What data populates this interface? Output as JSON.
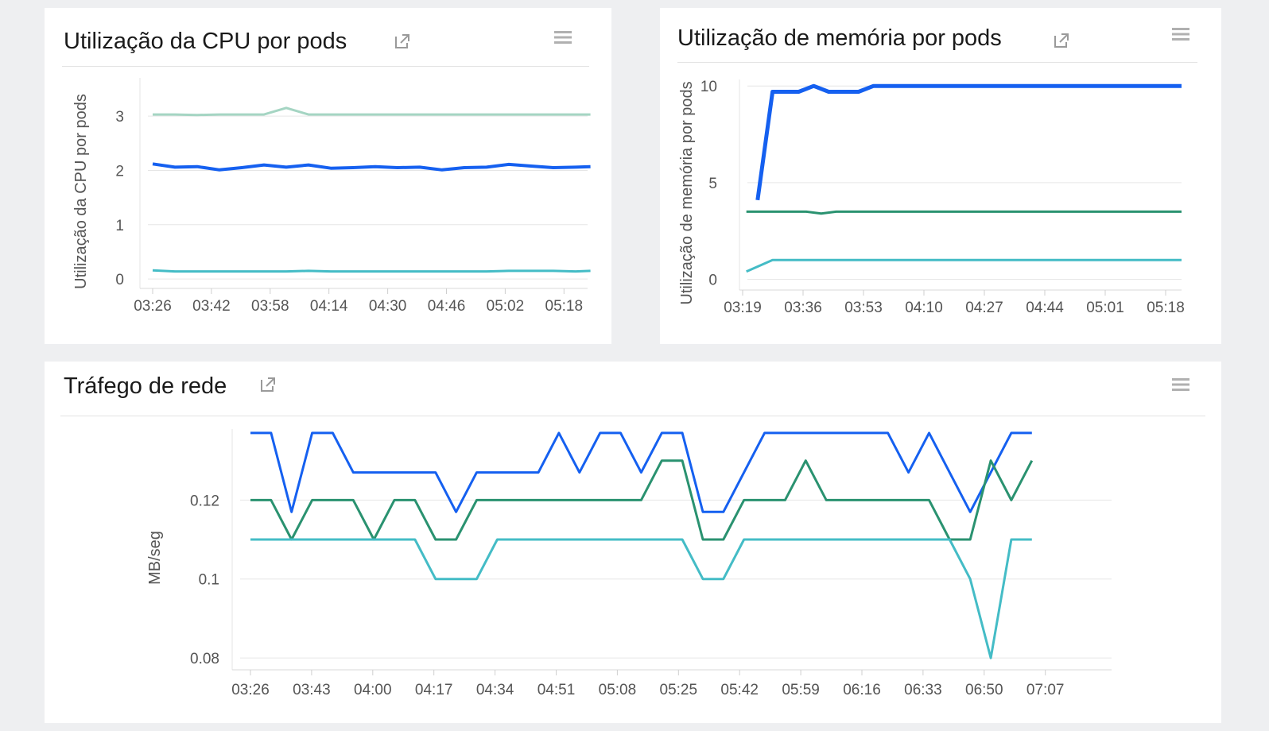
{
  "colors": {
    "blue": "#1560f0",
    "green": "#2a9270",
    "teal": "#44bcc6",
    "light_green": "#a5d5c3",
    "grid": "#e6e6e6",
    "axis_text": "#555555"
  },
  "icons": {
    "external": "external-link-icon",
    "menu": "hamburger-menu-icon"
  },
  "panels": {
    "cpu": {
      "title": "Utilização da CPU por pods"
    },
    "mem": {
      "title": "Utilização de memória por pods"
    },
    "net": {
      "title": "Tráfego de rede"
    }
  },
  "chart_data": [
    {
      "type": "line",
      "title": "Utilização da CPU por pods",
      "xlabel": "",
      "ylabel": "Utilização da CPU por pods",
      "x_tick_labels": [
        "03:26",
        "03:42",
        "03:58",
        "04:14",
        "04:30",
        "04:46",
        "05:02",
        "05:18"
      ],
      "y_ticks": [
        0,
        1,
        2,
        3
      ],
      "y_tick_labels": [
        "0",
        "1",
        "2",
        "3"
      ],
      "ylim": [
        -0.1,
        3.85
      ],
      "x_range_minutes": [
        0,
        118
      ],
      "grid": true,
      "legend": "none",
      "series": [
        {
          "color": "#a5d5c3",
          "width": 3,
          "x": [
            0,
            6,
            12,
            18,
            24,
            30,
            36,
            42,
            48,
            54,
            60,
            66,
            72,
            78,
            84,
            90,
            96,
            102,
            108,
            114,
            118
          ],
          "values": [
            3.03,
            3.03,
            3.02,
            3.03,
            3.03,
            3.03,
            3.15,
            3.03,
            3.03,
            3.03,
            3.03,
            3.03,
            3.03,
            3.03,
            3.03,
            3.03,
            3.03,
            3.03,
            3.03,
            3.03,
            3.03
          ]
        },
        {
          "color": "#1560f0",
          "width": 4,
          "x": [
            0,
            6,
            12,
            18,
            24,
            30,
            36,
            42,
            48,
            54,
            60,
            66,
            72,
            78,
            84,
            90,
            96,
            102,
            108,
            114,
            118
          ],
          "values": [
            2.12,
            2.06,
            2.07,
            2.01,
            2.05,
            2.1,
            2.06,
            2.1,
            2.04,
            2.05,
            2.07,
            2.05,
            2.06,
            2.01,
            2.05,
            2.06,
            2.11,
            2.08,
            2.05,
            2.06,
            2.07
          ]
        },
        {
          "color": "#44bcc6",
          "width": 3,
          "x": [
            0,
            6,
            12,
            18,
            24,
            30,
            36,
            42,
            48,
            54,
            60,
            66,
            72,
            78,
            84,
            90,
            96,
            102,
            108,
            114,
            118
          ],
          "values": [
            0.16,
            0.14,
            0.14,
            0.14,
            0.14,
            0.14,
            0.14,
            0.15,
            0.14,
            0.14,
            0.14,
            0.14,
            0.14,
            0.14,
            0.14,
            0.14,
            0.15,
            0.15,
            0.15,
            0.14,
            0.15
          ]
        }
      ]
    },
    {
      "type": "line",
      "title": "Utilização de memória por pods",
      "xlabel": "",
      "ylabel": "Utilização de memória por pods",
      "x_tick_labels": [
        "03:19",
        "03:36",
        "03:53",
        "04:10",
        "04:27",
        "04:44",
        "05:01",
        "05:18"
      ],
      "y_ticks": [
        0,
        5,
        10
      ],
      "y_tick_labels": [
        "0",
        "5",
        "10"
      ],
      "ylim": [
        -0.35,
        10.75
      ],
      "x_range_minutes": [
        0,
        122
      ],
      "grid": true,
      "legend": "none",
      "series": [
        {
          "color": "#1560f0",
          "width": 5,
          "x": [
            4,
            8,
            15,
            19,
            23,
            27,
            31,
            35,
            39,
            43,
            47,
            51,
            55,
            59,
            63,
            67,
            71,
            75,
            79,
            83,
            87,
            91,
            95,
            99,
            103,
            107,
            111,
            115,
            119,
            122
          ],
          "values": [
            4.1,
            9.7,
            9.7,
            10.0,
            9.7,
            9.7,
            9.7,
            10.0,
            10.0,
            10.0,
            10.0,
            10.0,
            10.0,
            10.0,
            10.0,
            10.0,
            10.0,
            10.0,
            10.0,
            10.0,
            10.0,
            10.0,
            10.0,
            10.0,
            10.0,
            10.0,
            10.0,
            10.0,
            10.0,
            9.7
          ]
        },
        {
          "color": "#2a9270",
          "width": 3,
          "x": [
            1,
            5,
            9,
            13,
            17,
            21,
            25,
            29,
            33,
            37,
            41,
            45,
            49,
            53,
            57,
            61,
            65,
            69,
            73,
            77,
            81,
            85,
            89,
            93,
            97,
            101,
            105,
            109,
            113,
            117,
            122
          ],
          "values": [
            3.5,
            3.5,
            3.5,
            3.5,
            3.5,
            3.4,
            3.5,
            3.5,
            3.5,
            3.5,
            3.5,
            3.5,
            3.5,
            3.5,
            3.5,
            3.5,
            3.5,
            3.5,
            3.5,
            3.5,
            3.5,
            3.5,
            3.5,
            3.5,
            3.5,
            3.5,
            3.5,
            3.5,
            3.5,
            3.5,
            3.5
          ]
        },
        {
          "color": "#44bcc6",
          "width": 3,
          "x": [
            1,
            8,
            12,
            16,
            20,
            24,
            28,
            32,
            36,
            40,
            44,
            48,
            52,
            56,
            60,
            64,
            68,
            72,
            76,
            80,
            84,
            88,
            92,
            96,
            100,
            104,
            108,
            112,
            116,
            122
          ],
          "values": [
            0.4,
            1.0,
            1.0,
            1.0,
            1.0,
            1.0,
            1.0,
            1.0,
            1.0,
            1.0,
            1.0,
            1.0,
            1.0,
            1.0,
            1.0,
            1.0,
            1.0,
            1.0,
            1.0,
            1.0,
            1.0,
            1.0,
            1.0,
            1.0,
            1.0,
            1.0,
            1.0,
            1.0,
            1.0,
            1.0
          ]
        }
      ]
    },
    {
      "type": "line",
      "title": "Tráfego de rede",
      "xlabel": "",
      "ylabel": "MB/seg",
      "x_tick_labels": [
        "03:26",
        "03:43",
        "04:00",
        "04:17",
        "04:34",
        "04:51",
        "05:08",
        "05:25",
        "05:42",
        "05:59",
        "06:16",
        "06:33",
        "06:50",
        "07:07"
      ],
      "y_ticks": [
        0.08,
        0.1,
        0.12
      ],
      "y_tick_labels": [
        "0.08",
        "0.1",
        "0.12"
      ],
      "ylim": [
        0.078,
        0.14
      ],
      "x_range_minutes": [
        0,
        245
      ],
      "grid": true,
      "legend": "none",
      "series": [
        {
          "color": "#1560f0",
          "width": 3,
          "x": [
            0,
            6.2,
            12.4,
            18.6,
            24.8,
            31,
            37.2,
            43.4,
            49.6,
            55.8,
            62,
            68.2,
            74.4,
            80.6,
            86.8,
            93,
            99.2,
            105.4,
            111.6,
            117.8,
            124,
            130.2,
            136.4,
            142.6,
            148.8,
            155,
            161.2,
            167.4,
            173.6,
            179.8,
            186,
            192.2,
            198.4,
            204.6,
            210.8,
            217,
            223.2,
            229.4,
            235.6
          ],
          "values": [
            0.137,
            0.137,
            0.117,
            0.137,
            0.137,
            0.127,
            0.127,
            0.127,
            0.127,
            0.127,
            0.117,
            0.127,
            0.127,
            0.127,
            0.127,
            0.137,
            0.127,
            0.137,
            0.137,
            0.127,
            0.137,
            0.137,
            0.117,
            0.117,
            0.127,
            0.137,
            0.137,
            0.137,
            0.137,
            0.137,
            0.137,
            0.137,
            0.127,
            0.137,
            0.127,
            0.117,
            0.127,
            0.137,
            0.137
          ]
        },
        {
          "color": "#2a9270",
          "width": 3,
          "x": [
            0,
            6.2,
            12.4,
            18.6,
            24.8,
            31,
            37.2,
            43.4,
            49.6,
            55.8,
            62,
            68.2,
            74.4,
            80.6,
            86.8,
            93,
            99.2,
            105.4,
            111.6,
            117.8,
            124,
            130.2,
            136.4,
            142.6,
            148.8,
            155,
            161.2,
            167.4,
            173.6,
            179.8,
            186,
            192.2,
            198.4,
            204.6,
            210.8,
            217,
            223.2,
            229.4,
            235.6
          ],
          "values": [
            0.12,
            0.12,
            0.11,
            0.12,
            0.12,
            0.12,
            0.11,
            0.12,
            0.12,
            0.11,
            0.11,
            0.12,
            0.12,
            0.12,
            0.12,
            0.12,
            0.12,
            0.12,
            0.12,
            0.12,
            0.13,
            0.13,
            0.11,
            0.11,
            0.12,
            0.12,
            0.12,
            0.13,
            0.12,
            0.12,
            0.12,
            0.12,
            0.12,
            0.12,
            0.11,
            0.11,
            0.13,
            0.12,
            0.13
          ]
        },
        {
          "color": "#44bcc6",
          "width": 3,
          "x": [
            0,
            6.2,
            12.4,
            18.6,
            24.8,
            31,
            37.2,
            43.4,
            49.6,
            55.8,
            62,
            68.2,
            74.4,
            80.6,
            86.8,
            93,
            99.2,
            105.4,
            111.6,
            117.8,
            124,
            130.2,
            136.4,
            142.6,
            148.8,
            155,
            161.2,
            167.4,
            173.6,
            179.8,
            186,
            192.2,
            198.4,
            204.6,
            210.8,
            217,
            223.2,
            229.4,
            235.6
          ],
          "values": [
            0.11,
            0.11,
            0.11,
            0.11,
            0.11,
            0.11,
            0.11,
            0.11,
            0.11,
            0.1,
            0.1,
            0.1,
            0.11,
            0.11,
            0.11,
            0.11,
            0.11,
            0.11,
            0.11,
            0.11,
            0.11,
            0.11,
            0.1,
            0.1,
            0.11,
            0.11,
            0.11,
            0.11,
            0.11,
            0.11,
            0.11,
            0.11,
            0.11,
            0.11,
            0.11,
            0.1,
            0.08,
            0.11,
            0.11
          ]
        }
      ]
    }
  ]
}
